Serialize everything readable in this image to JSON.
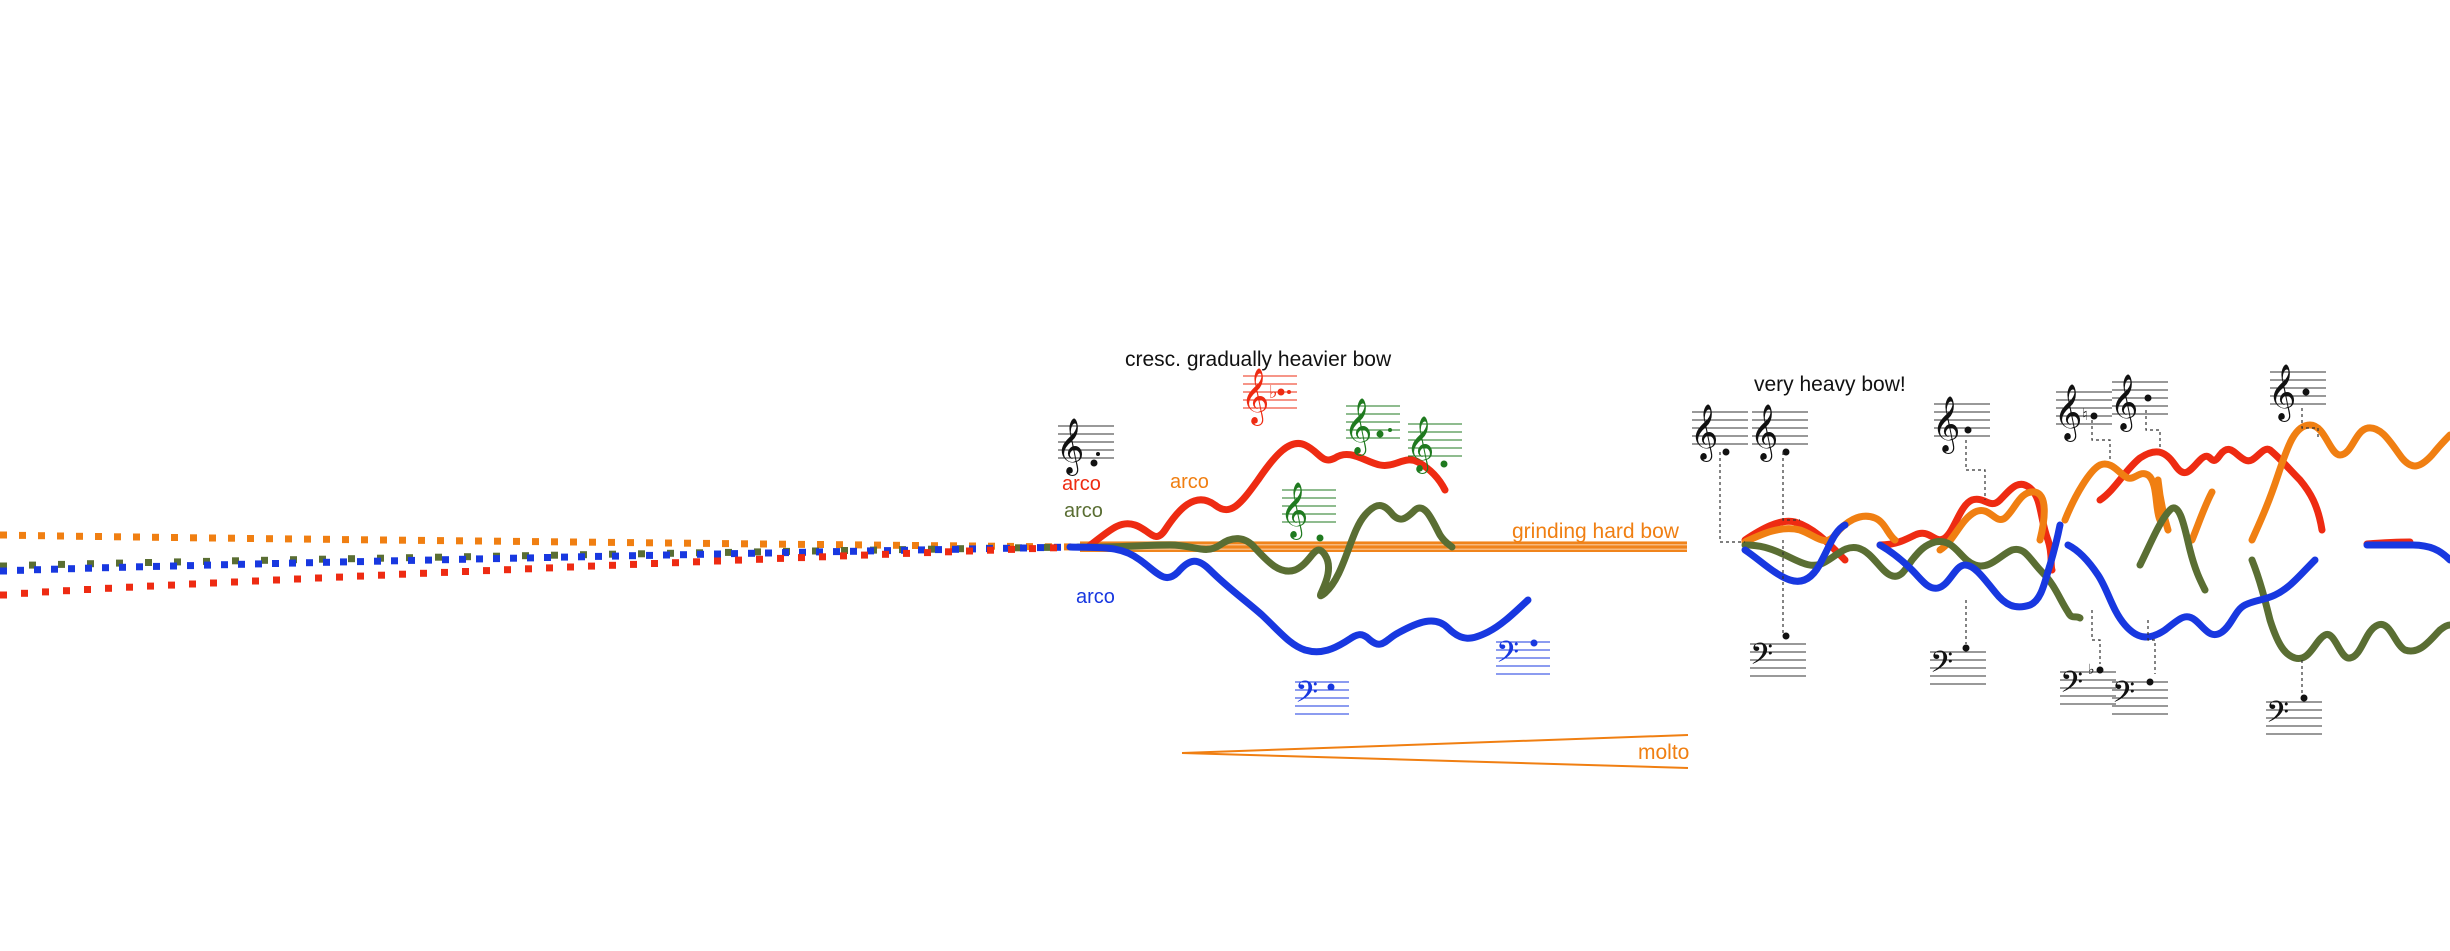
{
  "colors": {
    "violin1": "#ee2b12",
    "violin2": "#f07f12",
    "viola": "#5a6e33",
    "cello": "#1838e0",
    "ink": "#111111",
    "staff": "#666666"
  },
  "annotations": {
    "crescendo_text": "cresc. gradually heavier bow",
    "grinding_text": "grinding hard bow",
    "molto_text": "molto",
    "heavy_text": "very heavy bow!",
    "arco_violin1": "arco",
    "arco_violin2": "arco",
    "arco_viola": "arco",
    "arco_cello": "arco"
  },
  "icons": {
    "treble_clef": "treble-clef-icon",
    "bass_clef": "bass-clef-icon",
    "clef_glyphs": {
      "treble": "𝄞",
      "bass": "𝄢"
    }
  }
}
